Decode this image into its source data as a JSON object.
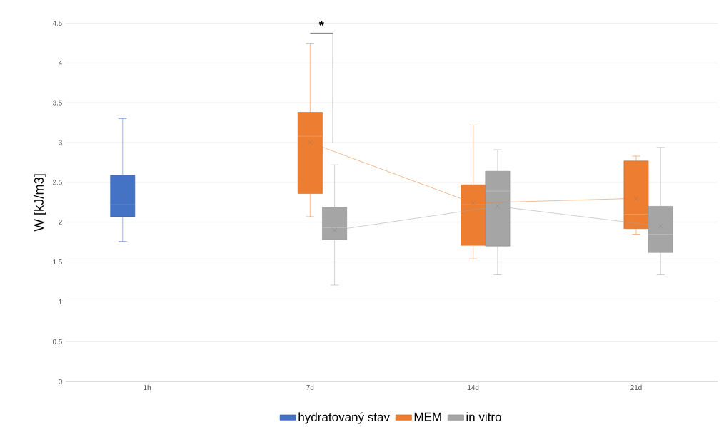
{
  "chart_data": {
    "type": "box",
    "ylabel": "W [kJ/m3]",
    "categories": [
      "1h",
      "7d",
      "14d",
      "21d"
    ],
    "ylim": [
      0,
      4.5
    ],
    "yticks": [
      0,
      0.5,
      1,
      1.5,
      2,
      2.5,
      3,
      3.5,
      4,
      4.5
    ],
    "grid": "y",
    "legend": "bottom",
    "annotations": [
      "*"
    ],
    "series": [
      {
        "name": "hydratovaný stav",
        "color": "#4472c4",
        "boxes": [
          {
            "low": 1.76,
            "q1": 2.07,
            "median": 2.22,
            "q3": 2.59,
            "high": 3.3,
            "mean": 2.35
          },
          null,
          null,
          null
        ]
      },
      {
        "name": "MEM",
        "color": "#ed7d31",
        "boxes": [
          null,
          {
            "low": 2.07,
            "q1": 2.36,
            "median": 3.08,
            "q3": 3.38,
            "high": 4.24,
            "mean": 3.0
          },
          {
            "low": 1.54,
            "q1": 1.71,
            "median": 2.22,
            "q3": 2.47,
            "high": 3.22,
            "mean": 2.24
          },
          {
            "low": 1.85,
            "q1": 1.92,
            "median": 2.1,
            "q3": 2.77,
            "high": 2.83,
            "mean": 2.3
          }
        ]
      },
      {
        "name": "in vitro",
        "color": "#a5a5a5",
        "boxes": [
          null,
          {
            "low": 1.21,
            "q1": 1.78,
            "median": 1.93,
            "q3": 2.19,
            "high": 2.72,
            "mean": 1.9
          },
          {
            "low": 1.34,
            "q1": 1.7,
            "median": 2.39,
            "q3": 2.64,
            "high": 2.91,
            "mean": 2.2
          },
          {
            "low": 1.34,
            "q1": 1.62,
            "median": 1.85,
            "q3": 2.2,
            "high": 2.94,
            "mean": 1.95
          }
        ]
      },
      {
        "type": "line",
        "color": "#ed7d31",
        "values": [
          null,
          3.0,
          2.24,
          2.3
        ]
      },
      {
        "type": "line",
        "color": "#a5a5a5",
        "values": [
          null,
          1.9,
          2.2,
          1.95
        ]
      }
    ]
  }
}
